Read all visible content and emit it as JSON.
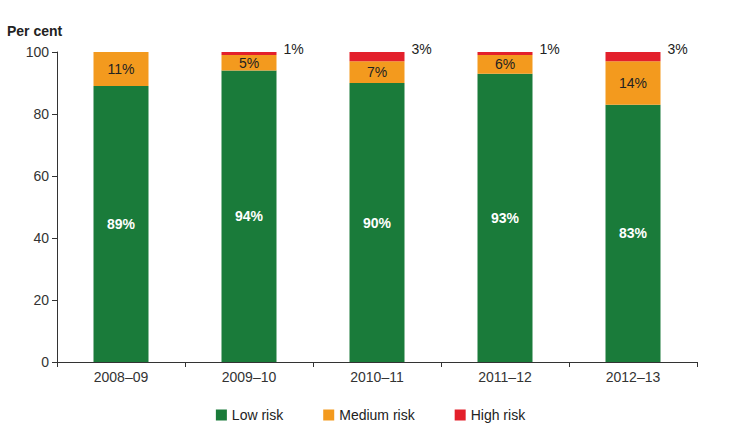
{
  "chart_data": {
    "type": "bar",
    "y_label": "Per cent",
    "categories": [
      "2008–09",
      "2009–10",
      "2010–11",
      "2011–12",
      "2012–13"
    ],
    "series": [
      {
        "name": "Low risk",
        "color": "#1a7b3a",
        "values": [
          89,
          94,
          90,
          93,
          83
        ],
        "value_labels": [
          "89%",
          "94%",
          "90%",
          "93%",
          "83%"
        ]
      },
      {
        "name": "Medium risk",
        "color": "#f39a1e",
        "values": [
          11,
          5,
          7,
          6,
          14
        ],
        "value_labels": [
          "11%",
          "5%",
          "7%",
          "6%",
          "14%"
        ]
      },
      {
        "name": "High risk",
        "color": "#e3202b",
        "values": [
          null,
          1,
          3,
          1,
          3
        ],
        "value_labels": [
          null,
          "1%",
          "3%",
          "1%",
          "3%"
        ]
      }
    ],
    "ylim": [
      0,
      100
    ],
    "yticks": [
      0,
      20,
      40,
      60,
      80,
      100
    ],
    "stacked": true,
    "data_labels": true,
    "grid": false,
    "legend": "bottom"
  }
}
